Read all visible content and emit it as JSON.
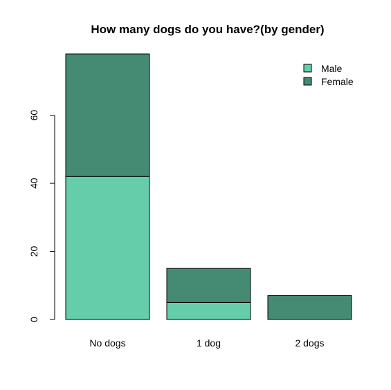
{
  "chart_data": {
    "type": "bar",
    "stacked": true,
    "title": "How many dogs do you have?(by gender)",
    "xlabel": "",
    "ylabel": "",
    "categories": [
      "No dogs",
      "1 dog",
      "2 dogs"
    ],
    "series": [
      {
        "name": "Male",
        "color": "#66cdaa",
        "values": [
          42,
          5,
          0
        ]
      },
      {
        "name": "Female",
        "color": "#458b74",
        "values": [
          36,
          10,
          7
        ]
      }
    ],
    "yticks": [
      0,
      20,
      40,
      60
    ],
    "ylim": [
      0,
      78
    ],
    "grid": false,
    "legend": {
      "position": "top-right",
      "entries": [
        "Male",
        "Female"
      ]
    }
  }
}
